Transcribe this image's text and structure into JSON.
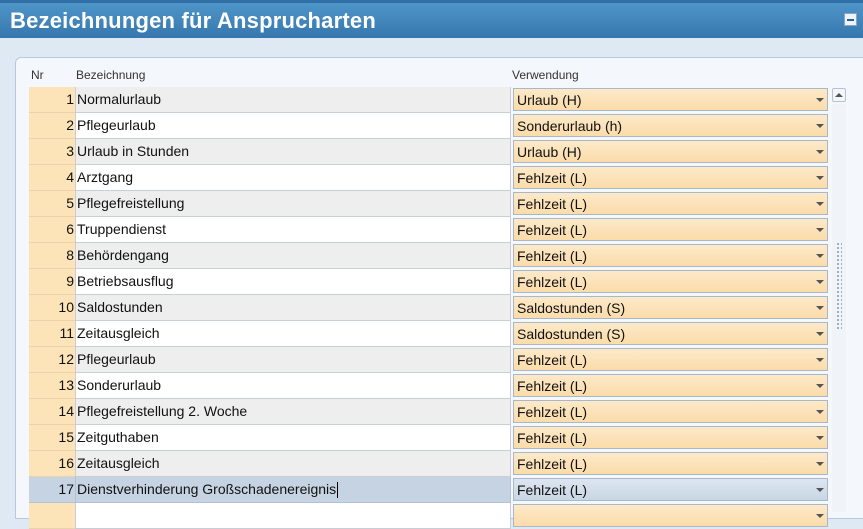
{
  "window": {
    "title": "Bezeichnungen für Ansprucharten"
  },
  "table": {
    "headers": {
      "nr": "Nr",
      "name": "Bezeichnung",
      "use": "Verwendung"
    },
    "rows": [
      {
        "nr": "1",
        "name": "Normalurlaub",
        "use": "Urlaub (H)"
      },
      {
        "nr": "2",
        "name": "Pflegeurlaub",
        "use": "Sonderurlaub (h)"
      },
      {
        "nr": "3",
        "name": "Urlaub in Stunden",
        "use": "Urlaub (H)"
      },
      {
        "nr": "4",
        "name": "Arztgang",
        "use": "Fehlzeit (L)"
      },
      {
        "nr": "5",
        "name": "Pflegefreistellung",
        "use": "Fehlzeit (L)"
      },
      {
        "nr": "6",
        "name": "Truppendienst",
        "use": "Fehlzeit (L)"
      },
      {
        "nr": "8",
        "name": "Behördengang",
        "use": "Fehlzeit (L)"
      },
      {
        "nr": "9",
        "name": "Betriebsausflug",
        "use": "Fehlzeit (L)"
      },
      {
        "nr": "10",
        "name": "Saldostunden",
        "use": "Saldostunden (S)"
      },
      {
        "nr": "11",
        "name": "Zeitausgleich",
        "use": "Saldostunden (S)"
      },
      {
        "nr": "12",
        "name": "Pflegeurlaub",
        "use": "Fehlzeit (L)"
      },
      {
        "nr": "13",
        "name": "Sonderurlaub",
        "use": "Fehlzeit (L)"
      },
      {
        "nr": "14",
        "name": "Pflegefreistellung 2. Woche",
        "use": "Fehlzeit (L)"
      },
      {
        "nr": "15",
        "name": "Zeitguthaben",
        "use": "Fehlzeit (L)"
      },
      {
        "nr": "16",
        "name": "Zeitausgleich",
        "use": "Fehlzeit (L)"
      },
      {
        "nr": "17",
        "name": "Dienstverhinderung Großschadenereignis",
        "use": "Fehlzeit (L)"
      },
      {
        "nr": "",
        "name": "",
        "use": ""
      }
    ]
  },
  "colors": {
    "title_bg": "#3a7fb6",
    "nr_bg": "#fde3b8",
    "use_bg": "#fbdcaa",
    "selected_bg": "#c6d3e2"
  },
  "icons": {
    "collapse": "minus-icon",
    "dropdown": "chevron-down-icon",
    "scroll_up": "arrow-up-icon"
  }
}
